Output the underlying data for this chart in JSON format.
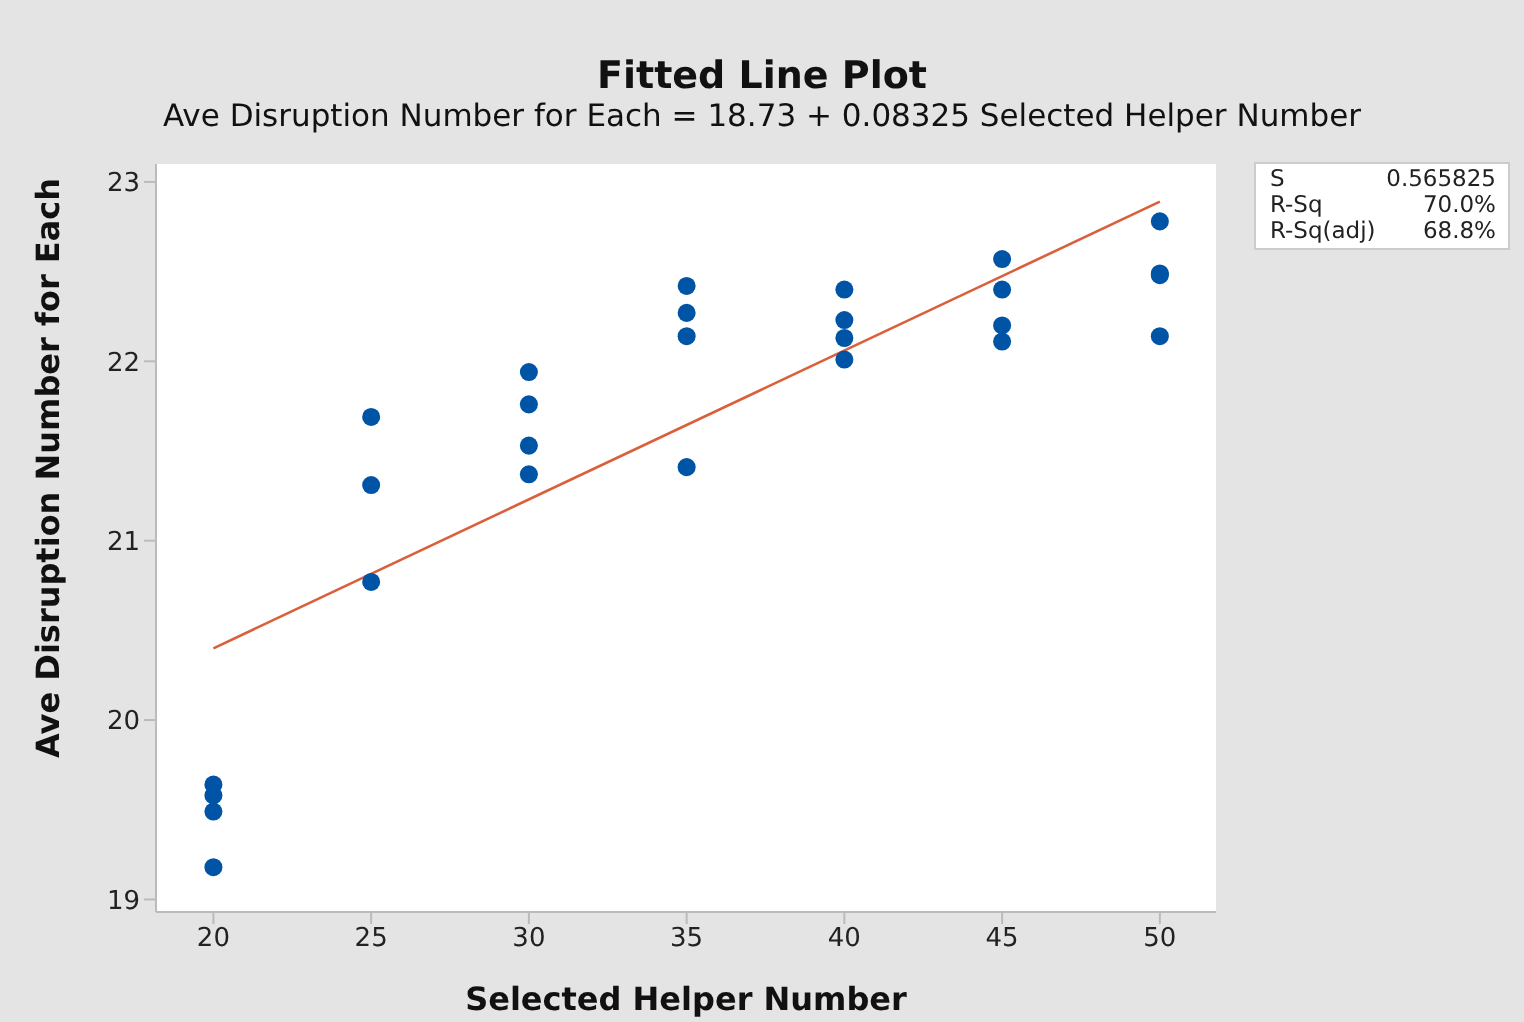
{
  "chart_data": {
    "type": "scatter",
    "title": "Fitted Line Plot",
    "subtitle": "Ave Disruption Number for Each = 18.73 + 0.08325 Selected Helper Number",
    "xlabel": "Selected Helper Number",
    "ylabel": "Ave Disruption Number for Each",
    "series": [
      {
        "color": "#0054a6",
        "marker": "circle",
        "x": [
          20,
          20,
          20,
          20,
          25,
          25,
          25,
          30,
          30,
          30,
          30,
          35,
          35,
          35,
          35,
          40,
          40,
          40,
          40,
          45,
          45,
          45,
          45,
          50,
          50,
          50,
          50
        ],
        "values": [
          19.64,
          19.58,
          19.49,
          19.18,
          21.69,
          21.31,
          20.77,
          21.94,
          21.76,
          21.53,
          21.37,
          22.42,
          22.27,
          22.14,
          21.41,
          22.4,
          22.23,
          22.13,
          22.01,
          22.57,
          22.4,
          22.2,
          22.11,
          22.78,
          22.49,
          22.48,
          22.14
        ]
      },
      {
        "type": "line",
        "color": "#d9603b",
        "marker": "none",
        "x": [
          20,
          50
        ],
        "values": [
          20.4,
          22.89
        ]
      }
    ],
    "xlim": [
      18.18,
      51.78
    ],
    "xticks": [
      20,
      25,
      30,
      35,
      40,
      45,
      50
    ],
    "ylim": [
      18.93,
      23.1
    ],
    "yticks": [
      19,
      20,
      21,
      22,
      23
    ],
    "grid": false,
    "line_style": "solid",
    "annotations": [
      "S",
      "0.565825",
      "R-Sq",
      "70.0%",
      "R-Sq(adj)",
      "68.8%"
    ]
  }
}
